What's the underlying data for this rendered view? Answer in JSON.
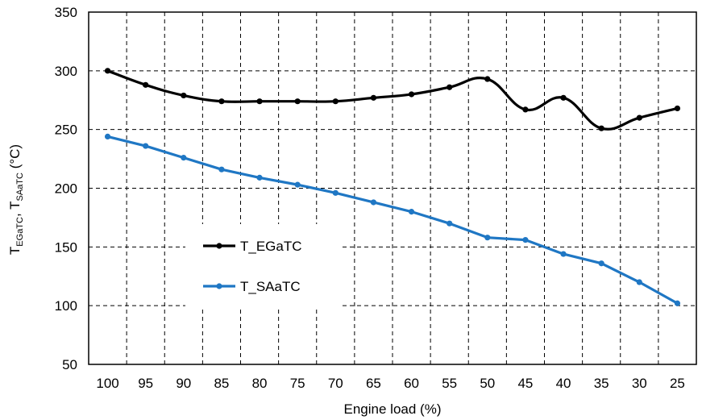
{
  "chart_data": {
    "type": "line",
    "xlabel": "Engine load (%)",
    "ylabel": {
      "prefix1": "T",
      "sub1": "EGaTC",
      "sep": ",  ",
      "prefix2": "T",
      "sub2": "SAaTC",
      "unit": "  (°C)"
    },
    "ylim": [
      50,
      350
    ],
    "yticks": [
      50,
      100,
      150,
      200,
      250,
      300,
      350
    ],
    "categories": [
      "100",
      "95",
      "90",
      "85",
      "80",
      "75",
      "70",
      "65",
      "60",
      "55",
      "50",
      "45",
      "40",
      "35",
      "30",
      "25"
    ],
    "grid": true,
    "legend_position": "left-middle",
    "series": [
      {
        "name": "T_EGaTC",
        "color": "#000000",
        "smooth": true,
        "values": [
          300,
          288,
          279,
          274,
          274,
          274,
          274,
          277,
          280,
          286,
          293,
          267,
          277,
          251,
          260,
          268
        ]
      },
      {
        "name": "T_SAaTC",
        "color": "#1f77c4",
        "smooth": false,
        "values": [
          244,
          236,
          226,
          216,
          209,
          203,
          196,
          188,
          180,
          170,
          158,
          156,
          144,
          136,
          120,
          102
        ]
      }
    ]
  }
}
